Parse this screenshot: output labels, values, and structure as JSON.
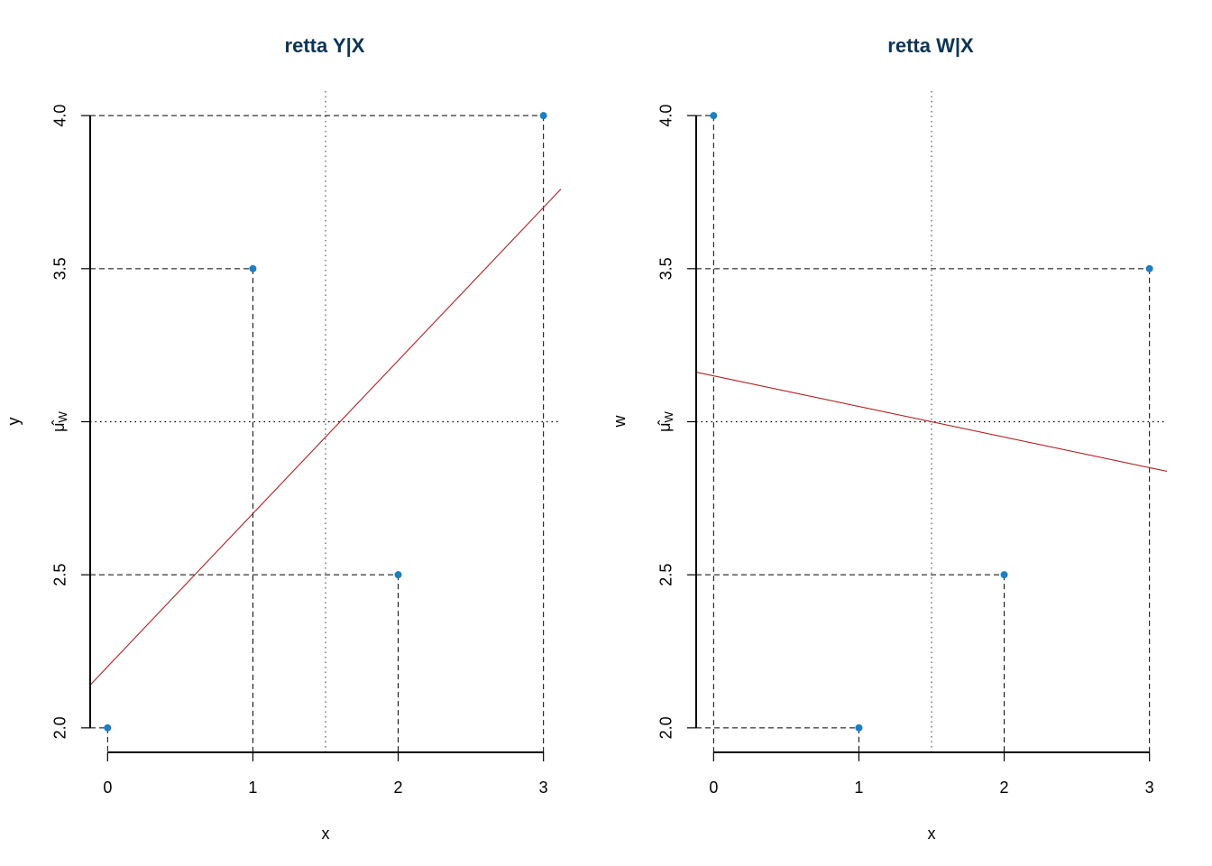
{
  "chart_data": [
    {
      "type": "scatter",
      "title": "retta Y|X",
      "xlabel": "x",
      "ylabel": "y",
      "mean_tick_label": "μ̂",
      "mean_tick_subscript": "W",
      "xlim": [
        -0.12,
        3.12
      ],
      "ylim": [
        1.92,
        4.08
      ],
      "x_ticks": [
        0,
        1,
        2,
        3
      ],
      "x_tick_labels": [
        "0",
        "1",
        "2",
        "3"
      ],
      "y_ticks": [
        2.0,
        2.5,
        3.5,
        4.0
      ],
      "y_tick_labels": [
        "2.0",
        "2.5",
        "3.5",
        "4.0"
      ],
      "points": {
        "x": [
          0,
          1,
          2,
          3
        ],
        "y": [
          2.0,
          3.5,
          2.5,
          4.0
        ]
      },
      "x_mean": 1.5,
      "y_mean": 3.0,
      "regression": {
        "intercept": 2.2,
        "slope": 0.5
      },
      "colors": {
        "title": "#0b3556",
        "points": "#1a7fc4",
        "line": "#b22222"
      }
    },
    {
      "type": "scatter",
      "title": "retta W|X",
      "xlabel": "x",
      "ylabel": "w",
      "mean_tick_label": "μ̂",
      "mean_tick_subscript": "W",
      "xlim": [
        -0.12,
        3.12
      ],
      "ylim": [
        1.92,
        4.08
      ],
      "x_ticks": [
        0,
        1,
        2,
        3
      ],
      "x_tick_labels": [
        "0",
        "1",
        "2",
        "3"
      ],
      "y_ticks": [
        2.0,
        2.5,
        3.5,
        4.0
      ],
      "y_tick_labels": [
        "2.0",
        "2.5",
        "3.5",
        "4.0"
      ],
      "points": {
        "x": [
          0,
          1,
          2,
          3
        ],
        "y": [
          4.0,
          2.0,
          2.5,
          3.5
        ]
      },
      "x_mean": 1.5,
      "y_mean": 3.0,
      "regression": {
        "intercept": 3.15,
        "slope": -0.1
      },
      "colors": {
        "title": "#0b3556",
        "points": "#1a7fc4",
        "line": "#b22222"
      }
    }
  ]
}
